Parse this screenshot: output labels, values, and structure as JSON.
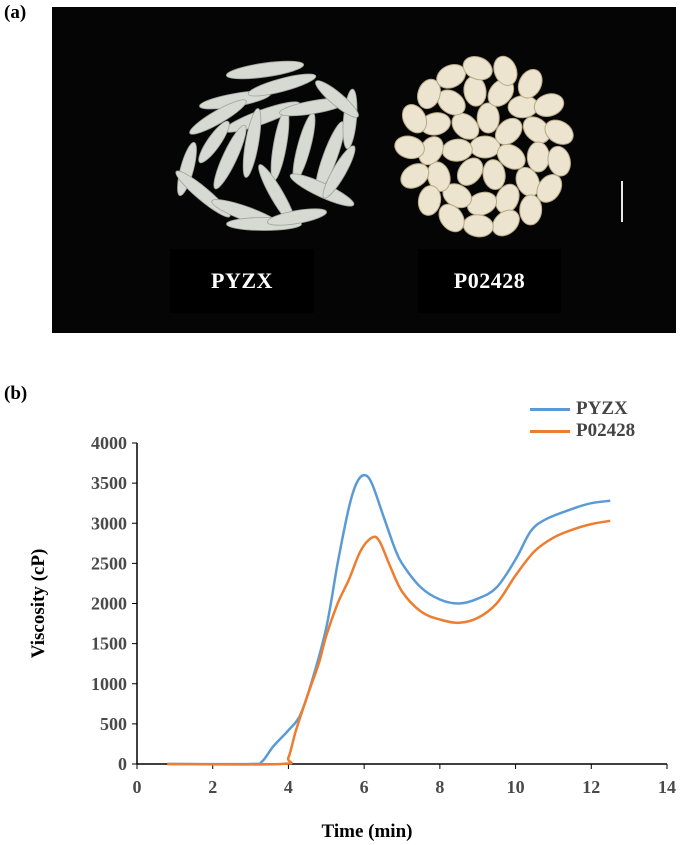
{
  "figure": {
    "panel_a_label": "(a)",
    "panel_b_label": "(b)",
    "samples": [
      "PYZX",
      "P02428"
    ]
  },
  "chart_data": {
    "type": "line",
    "xlabel": "Time (min)",
    "ylabel": "Viscosity (cP)",
    "xlim": [
      0,
      14
    ],
    "ylim": [
      0,
      4000
    ],
    "xticks": [
      0,
      2,
      4,
      6,
      8,
      10,
      12,
      14
    ],
    "yticks": [
      0,
      500,
      1000,
      1500,
      2000,
      2500,
      3000,
      3500,
      4000
    ],
    "grid": false,
    "legend_position": "top-right",
    "series": [
      {
        "name": "PYZX",
        "color": "#5B9BD5",
        "points": [
          [
            0.8,
            0
          ],
          [
            3.0,
            0
          ],
          [
            3.3,
            30
          ],
          [
            3.6,
            220
          ],
          [
            4.0,
            420
          ],
          [
            4.3,
            600
          ],
          [
            4.6,
            1000
          ],
          [
            5.0,
            1700
          ],
          [
            5.3,
            2500
          ],
          [
            5.6,
            3200
          ],
          [
            5.8,
            3500
          ],
          [
            6.0,
            3600
          ],
          [
            6.2,
            3500
          ],
          [
            6.5,
            3100
          ],
          [
            6.8,
            2700
          ],
          [
            7.0,
            2500
          ],
          [
            7.5,
            2200
          ],
          [
            8.0,
            2050
          ],
          [
            8.5,
            2000
          ],
          [
            9.0,
            2060
          ],
          [
            9.5,
            2200
          ],
          [
            10.0,
            2550
          ],
          [
            10.4,
            2900
          ],
          [
            10.8,
            3050
          ],
          [
            11.5,
            3180
          ],
          [
            12.0,
            3250
          ],
          [
            12.5,
            3280
          ]
        ]
      },
      {
        "name": "P02428",
        "color": "#ED7D31",
        "points": [
          [
            0.8,
            0
          ],
          [
            3.8,
            0
          ],
          [
            4.0,
            80
          ],
          [
            4.2,
            420
          ],
          [
            4.5,
            850
          ],
          [
            4.8,
            1250
          ],
          [
            5.0,
            1600
          ],
          [
            5.3,
            2000
          ],
          [
            5.6,
            2300
          ],
          [
            5.9,
            2650
          ],
          [
            6.2,
            2820
          ],
          [
            6.4,
            2780
          ],
          [
            6.7,
            2450
          ],
          [
            7.0,
            2150
          ],
          [
            7.5,
            1900
          ],
          [
            8.0,
            1800
          ],
          [
            8.5,
            1760
          ],
          [
            9.0,
            1820
          ],
          [
            9.5,
            2000
          ],
          [
            10.0,
            2350
          ],
          [
            10.5,
            2650
          ],
          [
            11.0,
            2820
          ],
          [
            11.5,
            2920
          ],
          [
            12.0,
            2990
          ],
          [
            12.5,
            3030
          ]
        ]
      }
    ]
  }
}
